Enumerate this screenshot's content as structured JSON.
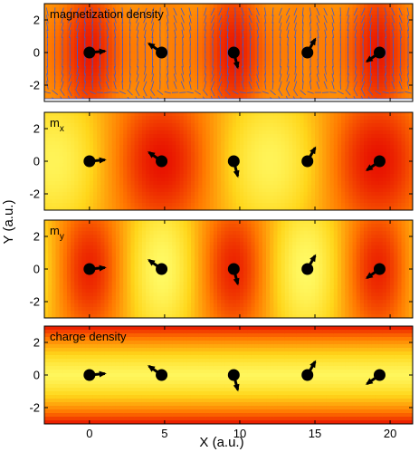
{
  "figure": {
    "xlabel": "X (a.u.)",
    "ylabel": "Y (a.u.)"
  },
  "chart_data": [
    {
      "type": "heatmap",
      "title": "magnetization density",
      "xlim": [
        -3,
        21.5
      ],
      "ylim": [
        -3,
        3
      ],
      "xticks": [
        0,
        5,
        10,
        15,
        20
      ],
      "yticks": [
        -2,
        0,
        2
      ],
      "show_xtick_labels": false,
      "overlay": "vector field (blue line segments)",
      "colormap": [
        "#ffff66",
        "#ff2000"
      ],
      "atoms": [
        {
          "x": 0.0,
          "y": 0.0,
          "angle_deg": 5
        },
        {
          "x": 4.8,
          "y": 0.0,
          "angle_deg": 145
        },
        {
          "x": 9.6,
          "y": 0.0,
          "angle_deg": -75
        },
        {
          "x": 14.5,
          "y": 0.0,
          "angle_deg": 60
        },
        {
          "x": 19.3,
          "y": 0.0,
          "angle_deg": -145
        }
      ]
    },
    {
      "type": "heatmap",
      "title": "m",
      "title_subscript": "x",
      "xlim": [
        -3,
        21.5
      ],
      "ylim": [
        -3,
        3
      ],
      "xticks": [
        0,
        5,
        10,
        15,
        20
      ],
      "yticks": [
        -2,
        0,
        2
      ],
      "show_xtick_labels": false,
      "colormap": [
        "#ffff66",
        "#ff2000"
      ],
      "atoms": [
        {
          "x": 0.0,
          "y": 0.0,
          "angle_deg": 5
        },
        {
          "x": 4.8,
          "y": 0.0,
          "angle_deg": 145
        },
        {
          "x": 9.6,
          "y": 0.0,
          "angle_deg": -75
        },
        {
          "x": 14.5,
          "y": 0.0,
          "angle_deg": 60
        },
        {
          "x": 19.3,
          "y": 0.0,
          "angle_deg": -145
        }
      ]
    },
    {
      "type": "heatmap",
      "title": "m",
      "title_subscript": "y",
      "xlim": [
        -3,
        21.5
      ],
      "ylim": [
        -3,
        3
      ],
      "xticks": [
        0,
        5,
        10,
        15,
        20
      ],
      "yticks": [
        -2,
        0,
        2
      ],
      "show_xtick_labels": false,
      "colormap": [
        "#ffff66",
        "#ff2000"
      ],
      "atoms": [
        {
          "x": 0.0,
          "y": 0.0,
          "angle_deg": 5
        },
        {
          "x": 4.8,
          "y": 0.0,
          "angle_deg": 145
        },
        {
          "x": 9.6,
          "y": 0.0,
          "angle_deg": -75
        },
        {
          "x": 14.5,
          "y": 0.0,
          "angle_deg": 60
        },
        {
          "x": 19.3,
          "y": 0.0,
          "angle_deg": -145
        }
      ]
    },
    {
      "type": "heatmap",
      "title": "charge density",
      "xlim": [
        -3,
        21.5
      ],
      "ylim": [
        -3,
        3
      ],
      "xticks": [
        0,
        5,
        10,
        15,
        20
      ],
      "yticks": [
        -2,
        0,
        2
      ],
      "show_xtick_labels": true,
      "colormap": [
        "#ffff66",
        "#ff2000"
      ],
      "atoms": [
        {
          "x": 0.0,
          "y": 0.0,
          "angle_deg": 5
        },
        {
          "x": 4.8,
          "y": 0.0,
          "angle_deg": 145
        },
        {
          "x": 9.6,
          "y": 0.0,
          "angle_deg": -75
        },
        {
          "x": 14.5,
          "y": 0.0,
          "angle_deg": 60
        },
        {
          "x": 19.3,
          "y": 0.0,
          "angle_deg": -145
        }
      ]
    }
  ]
}
